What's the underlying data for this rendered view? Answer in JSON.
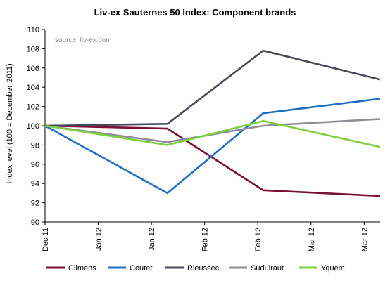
{
  "chart_data": {
    "type": "line",
    "title": "Liv-ex Sauternes 50 Index: Component brands",
    "source_note": "source: liv-ex.com",
    "ylabel": "Index level (100 = December 2011)",
    "ylim": [
      90,
      110
    ],
    "yticks": [
      90,
      92,
      94,
      96,
      98,
      100,
      102,
      104,
      106,
      108,
      110
    ],
    "x_ticks": [
      "Dec 11",
      "Jan 12",
      "Jan 12",
      "Feb 12",
      "Feb 12",
      "Mar 12",
      "Mar 12"
    ],
    "x_range": [
      0,
      6.3
    ],
    "grid": {
      "x": false,
      "y": false
    },
    "legend_position": "bottom",
    "series": [
      {
        "name": "Climens",
        "color": "#7b1035",
        "x": [
          0,
          2.3,
          4.1,
          6.3
        ],
        "values": [
          100,
          99.7,
          93.3,
          92.7
        ]
      },
      {
        "name": "Coutet",
        "color": "#1f6fc4",
        "x": [
          0,
          2.3,
          4.1,
          6.3
        ],
        "values": [
          100,
          93.0,
          101.3,
          102.8
        ]
      },
      {
        "name": "Rieussec",
        "color": "#4a4858",
        "x": [
          0,
          2.3,
          4.1,
          6.3
        ],
        "values": [
          100,
          100.2,
          107.8,
          104.8
        ]
      },
      {
        "name": "Suduiraut",
        "color": "#8e8e98",
        "x": [
          0,
          2.3,
          4.1,
          6.3
        ],
        "values": [
          100,
          98.3,
          100.0,
          100.7
        ]
      },
      {
        "name": "Yquem",
        "color": "#7ccf3e",
        "x": [
          0,
          2.3,
          4.1,
          6.3
        ],
        "values": [
          100,
          98.0,
          100.5,
          97.8
        ]
      }
    ]
  }
}
